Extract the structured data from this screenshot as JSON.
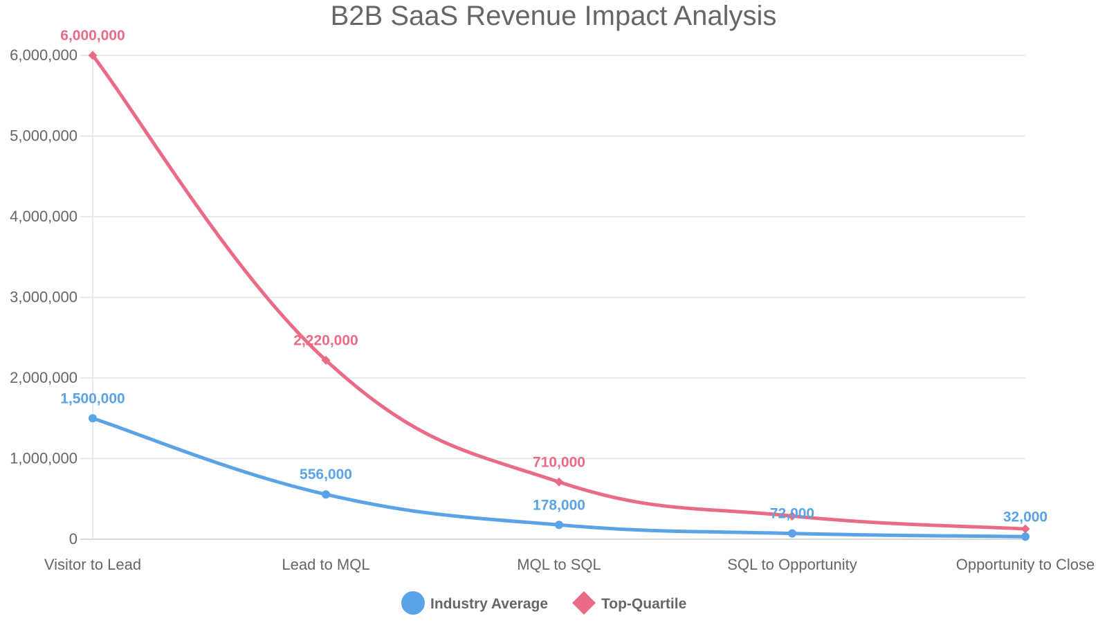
{
  "chart_data": {
    "type": "line",
    "title": "B2B SaaS Revenue Impact Analysis",
    "categories": [
      "Visitor to Lead",
      "Lead to MQL",
      "MQL to SQL",
      "SQL to Opportunity",
      "Opportunity to Close"
    ],
    "series": [
      {
        "name": "Industry Average",
        "values": [
          1500000,
          556000,
          178000,
          72000,
          32000
        ],
        "labels": [
          "1,500,000",
          "556,000",
          "178,000",
          "72,000",
          "32,000"
        ],
        "color": "#5aa3e6",
        "marker": "circle"
      },
      {
        "name": "Top-Quartile",
        "values": [
          6000000,
          2220000,
          710000,
          288000,
          128000
        ],
        "labels": [
          "6,000,000",
          "2,220,000",
          "710,000",
          "",
          ""
        ],
        "color": "#ea6b86",
        "marker": "diamond"
      }
    ],
    "yticks": [
      0,
      1000000,
      2000000,
      3000000,
      4000000,
      5000000,
      6000000
    ],
    "ytick_labels": [
      "0",
      "1,000,000",
      "2,000,000",
      "3,000,000",
      "4,000,000",
      "5,000,000",
      "6,000,000"
    ],
    "ylim": [
      0,
      6000000
    ],
    "grid": true,
    "legend": "bottom-center",
    "xlabel": "",
    "ylabel": ""
  }
}
